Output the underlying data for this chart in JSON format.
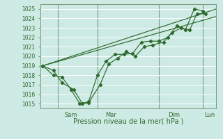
{
  "title": "Pression niveau de la mer( hPa )",
  "bg_color": "#ceeae4",
  "grid_color": "#ffffff",
  "line_color": "#2d6a2d",
  "ylim": [
    1014.5,
    1025.5
  ],
  "yticks": [
    1015,
    1016,
    1017,
    1018,
    1019,
    1020,
    1021,
    1022,
    1023,
    1024,
    1025
  ],
  "xlim": [
    0,
    20
  ],
  "vlines_x": [
    2.0,
    6.5,
    13.5,
    18.5
  ],
  "xtick_day_labels": [
    "Sam",
    "Mar",
    "Dim",
    "Lun"
  ],
  "xtick_day_x": [
    3.5,
    8.0,
    15.2,
    19.2
  ],
  "trend1_x": [
    0.3,
    20.0
  ],
  "trend1_y": [
    1019.0,
    1025.0
  ],
  "trend2_x": [
    0.3,
    20.0
  ],
  "trend2_y": [
    1019.0,
    1024.2
  ],
  "jagged1_x": [
    0.3,
    1.5,
    2.5,
    3.5,
    4.5,
    5.5,
    6.5,
    7.5,
    8.5,
    9.5,
    10.5,
    11.5,
    12.5,
    13.5,
    14.5,
    15.5,
    16.5,
    17.5,
    18.5
  ],
  "jagged1_y": [
    1019.0,
    1018.0,
    1017.8,
    1016.5,
    1015.0,
    1015.2,
    1018.0,
    1019.5,
    1020.2,
    1020.2,
    1020.3,
    1021.5,
    1021.6,
    1021.6,
    1022.0,
    1023.2,
    1022.8,
    1025.0,
    1024.8
  ],
  "jagged2_x": [
    0.3,
    1.5,
    2.5,
    3.8,
    4.8,
    5.5,
    6.8,
    7.8,
    8.8,
    9.8,
    10.8,
    11.8,
    12.8,
    14.0,
    15.0,
    16.0,
    17.0,
    17.8,
    18.8
  ],
  "jagged2_y": [
    1019.0,
    1018.5,
    1017.2,
    1016.5,
    1015.0,
    1015.1,
    1017.0,
    1019.2,
    1019.8,
    1020.5,
    1020.0,
    1021.0,
    1021.2,
    1021.5,
    1022.5,
    1023.0,
    1022.8,
    1024.5,
    1024.5
  ]
}
